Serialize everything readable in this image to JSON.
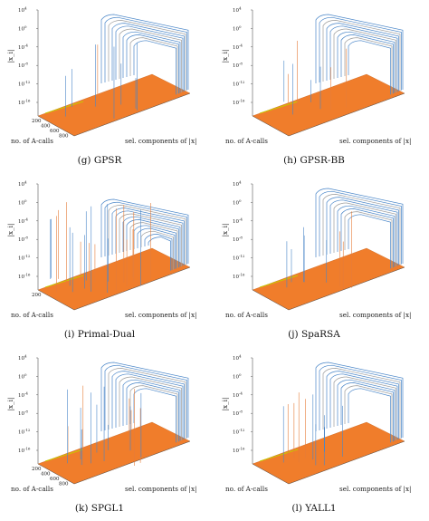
{
  "colors": {
    "plane": "#f07d2b",
    "curve_blue": "#4a86c8",
    "curve_orange": "#e57d3a",
    "curve_grey": "#9c9c9c",
    "yellow_line": "#c8c800",
    "axis": "#555555"
  },
  "shared": {
    "ylabel": "|x_i|",
    "xlabel": "no. of A-calls",
    "zlabel": "sel. components of |x|",
    "ytick_labels": [
      "10^{-16}",
      "10^{-12}",
      "10^{-8}",
      "10^{-4}",
      "10^{0}",
      "10^{4}"
    ],
    "xtick_labels_a": [
      "200",
      "400",
      "600",
      "800"
    ],
    "xtick_labels_b": [
      "200",
      "400",
      "600",
      "800"
    ]
  },
  "chart_data": [
    {
      "type": "line",
      "caption": "(g) GPSR",
      "title": "",
      "ylabel": "|x_i|",
      "xlabel": "no. of A-calls",
      "zlabel": "sel. components of |x|",
      "yscale": "log",
      "ylim": [
        "1e-16",
        "1e4"
      ],
      "xticks": [
        200,
        400,
        600,
        800
      ],
      "shape": "long"
    },
    {
      "type": "line",
      "caption": "(h) GPSR-BB",
      "title": "",
      "ylabel": "|x_i|",
      "xlabel": "no. of A-calls",
      "zlabel": "sel. components of |x|",
      "yscale": "log",
      "ylim": [
        "1e-16",
        "1e4"
      ],
      "xticks": [],
      "shape": "short"
    },
    {
      "type": "line",
      "caption": "(i) Primal-Dual",
      "title": "",
      "ylabel": "|x_i|",
      "xlabel": "no. of A-calls",
      "zlabel": "sel. components of |x|",
      "yscale": "log",
      "ylim": [
        "1e-16",
        "1e4"
      ],
      "xticks": [
        200
      ],
      "shape": "dense"
    },
    {
      "type": "line",
      "caption": "(j) SpaRSA",
      "title": "",
      "ylabel": "|x_i|",
      "xlabel": "no. of A-calls",
      "zlabel": "sel. components of |x|",
      "yscale": "log",
      "ylim": [
        "1e-16",
        "1e4"
      ],
      "xticks": [],
      "shape": "short"
    },
    {
      "type": "line",
      "caption": "(k) SPGL1",
      "title": "",
      "ylabel": "|x_i|",
      "xlabel": "no. of A-calls",
      "zlabel": "sel. components of |x|",
      "yscale": "log",
      "ylim": [
        "1e-16",
        "1e4"
      ],
      "xticks": [
        200,
        400,
        600,
        800
      ],
      "shape": "spiky"
    },
    {
      "type": "line",
      "caption": "(l) YALL1",
      "title": "",
      "ylabel": "|x_i|",
      "xlabel": "no. of A-calls",
      "zlabel": "sel. components of |x|",
      "yscale": "log",
      "ylim": [
        "1e-16",
        "1e4"
      ],
      "xticks": [],
      "shape": "spiky2"
    }
  ]
}
